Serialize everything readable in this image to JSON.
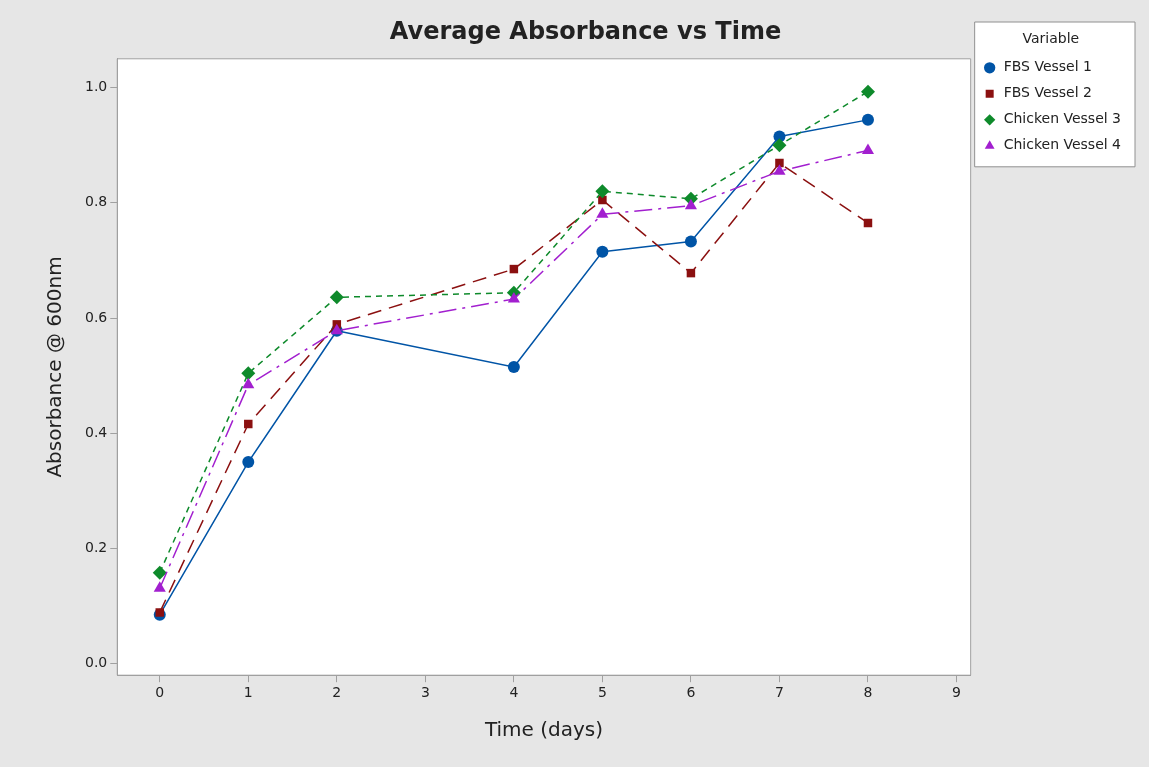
{
  "chart_data": {
    "type": "line",
    "title": "Average Absorbance vs Time",
    "xlabel": "Time (days)",
    "ylabel": "Absorbance @ 600nm",
    "legend_title": "Variable",
    "legend": "right",
    "grid": false,
    "xlim": [
      -0.48,
      9.16
    ],
    "xticks": [
      0,
      1,
      2,
      3,
      4,
      5,
      6,
      7,
      8,
      9
    ],
    "ylim": [
      -0.02,
      1.05
    ],
    "yticks": [
      {
        "value": 0,
        "label": "0.0"
      },
      {
        "value": 0.2,
        "label": "0.2"
      },
      {
        "value": 0.4,
        "label": "0.4"
      },
      {
        "value": 0.6,
        "label": "0.6"
      },
      {
        "value": 0.8,
        "label": "0.8"
      },
      {
        "value": 1,
        "label": "1.0"
      }
    ],
    "x": [
      0,
      1,
      2,
      4,
      5,
      6,
      7,
      8
    ],
    "series": [
      {
        "name": "FBS Vessel 1",
        "color": "#0054a6",
        "marker": "circle",
        "line_style": "solid",
        "values": [
          0.085,
          0.35,
          0.578,
          0.515,
          0.715,
          0.733,
          0.915,
          0.944
        ]
      },
      {
        "name": "FBS Vessel 2",
        "color": "#8b1010",
        "marker": "square",
        "line_style": "dashed",
        "values": [
          0.089,
          0.416,
          0.589,
          0.685,
          0.805,
          0.678,
          0.869,
          0.765
        ]
      },
      {
        "name": "Chicken Vessel 3",
        "color": "#0e8a2b",
        "marker": "diamond",
        "line_style": "dashed",
        "values": [
          0.158,
          0.504,
          0.636,
          0.644,
          0.82,
          0.807,
          0.9,
          0.993
        ]
      },
      {
        "name": "Chicken Vessel 4",
        "color": "#a21fcf",
        "marker": "triangle",
        "line_style": "dashed",
        "values": [
          0.131,
          0.484,
          0.578,
          0.633,
          0.78,
          0.795,
          0.855,
          0.891
        ]
      }
    ]
  }
}
